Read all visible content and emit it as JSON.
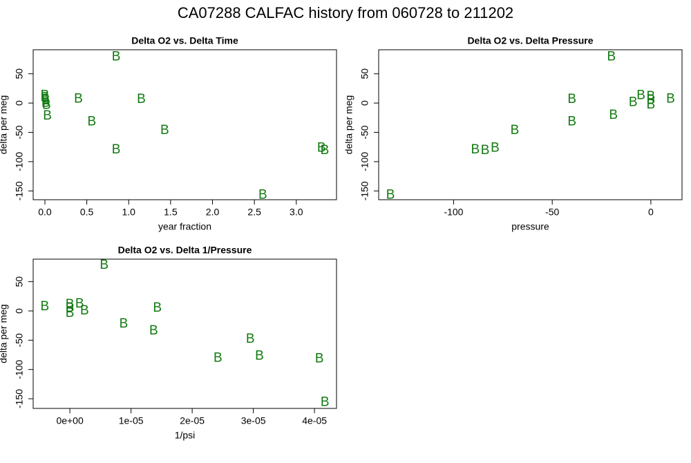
{
  "title": "CA07288   CALFAC history from  060728  to  211202",
  "chart_data": [
    {
      "type": "scatter",
      "title": "Delta O2 vs. Delta Time",
      "x_label": "year fraction",
      "y_label": "delta per meg",
      "marker": "B",
      "color": "#117a11",
      "x": [
        0.0,
        0.0,
        0.01,
        0.01,
        0.02,
        0.03,
        0.4,
        0.56,
        0.85,
        0.85,
        1.15,
        1.43,
        2.6,
        3.3,
        3.34
      ],
      "y": [
        14,
        10,
        6,
        1,
        -3,
        -21,
        8,
        -31,
        80,
        -79,
        7,
        -46,
        -156,
        -76,
        -80
      ],
      "xlim": [
        -0.14,
        3.48
      ],
      "ylim": [
        -165,
        91
      ],
      "xticks": [
        {
          "value": 0,
          "label": "0.0"
        },
        0.5,
        {
          "value": 1,
          "label": "1.0"
        },
        1.5,
        {
          "value": 2,
          "label": "2.0"
        },
        2.5,
        {
          "value": 3,
          "label": "3.0"
        }
      ],
      "yticks": [
        -150,
        -100,
        -50,
        0,
        50
      ]
    },
    {
      "type": "scatter",
      "title": "Delta O2 vs. Delta Pressure",
      "x_label": "pressure",
      "y_label": "delta per meg",
      "marker": "B",
      "color": "#117a11",
      "x": [
        -132,
        -89,
        -84,
        -79,
        -69,
        -40,
        -40,
        -20,
        -19,
        -9,
        -5,
        0,
        0,
        0,
        10
      ],
      "y": [
        -156,
        -79,
        -80,
        -76,
        -46,
        7,
        -31,
        80,
        -20,
        2,
        14,
        12,
        6,
        -2,
        8
      ],
      "xlim": [
        -138,
        15.8
      ],
      "ylim": [
        -165,
        91
      ],
      "xticks": [
        -100,
        -50,
        0
      ],
      "yticks": [
        -150,
        -100,
        -50,
        0,
        50
      ]
    },
    {
      "type": "scatter",
      "title": "Delta O2 vs. Delta 1/Pressure",
      "x_label": "1/psi",
      "y_label": "delta per meg",
      "marker": "B",
      "color": "#117a11",
      "x": [
        -4.1e-06,
        0,
        0,
        0,
        1.6e-06,
        2.4e-06,
        5.6e-06,
        8.8e-06,
        1.37e-05,
        1.43e-05,
        2.42e-05,
        2.95e-05,
        3.1e-05,
        4.08e-05,
        4.17e-05
      ],
      "y": [
        8,
        12,
        6,
        -3,
        13,
        1,
        79,
        -21,
        -33,
        6,
        -80,
        -47,
        -76,
        -81,
        -155
      ],
      "xlim": [
        -6e-06,
        4.36e-05
      ],
      "ylim": [
        -166.5,
        88.5
      ],
      "xticks": [
        {
          "value": 0,
          "label": "0e+00"
        },
        {
          "value": 1e-05,
          "label": "1e-05"
        },
        {
          "value": 2e-05,
          "label": "2e-05"
        },
        {
          "value": 3e-05,
          "label": "3e-05"
        },
        {
          "value": 4e-05,
          "label": "4e-05"
        }
      ],
      "yticks": [
        -150,
        -100,
        -50,
        0,
        50
      ]
    }
  ]
}
